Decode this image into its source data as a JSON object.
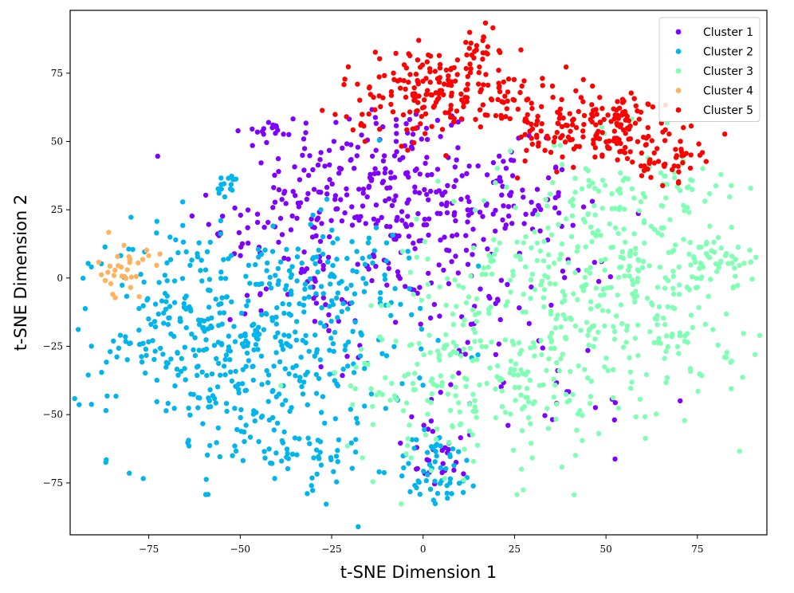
{
  "chart_data": {
    "type": "scatter",
    "title": "",
    "xlabel": "t-SNE Dimension 1",
    "ylabel": "t-SNE Dimension 2",
    "xlim": [
      -96.5,
      94
    ],
    "ylim": [
      -94,
      98
    ],
    "xticks": [
      -75,
      -50,
      -25,
      0,
      25,
      50,
      75
    ],
    "yticks": [
      -75,
      -50,
      -25,
      0,
      25,
      50,
      75
    ],
    "grid": false,
    "legend_position": "upper right",
    "series": [
      {
        "name": "Cluster 1",
        "color": "#8000ff",
        "marker": "circle",
        "regions": [
          {
            "cx": -12,
            "cy": 38,
            "sx": 15,
            "sy": 14,
            "n": 170
          },
          {
            "cx": 20,
            "cy": 28,
            "sx": 10,
            "sy": 10,
            "n": 90
          },
          {
            "cx": -38,
            "cy": 22,
            "sx": 10,
            "sy": 18,
            "n": 70
          },
          {
            "cx": -3,
            "cy": 8,
            "sx": 14,
            "sy": 12,
            "n": 70
          },
          {
            "cx": 20,
            "cy": -20,
            "sx": 18,
            "sy": 22,
            "n": 60
          },
          {
            "cx": 5,
            "cy": -65,
            "sx": 7,
            "sy": 6,
            "n": 22
          },
          {
            "cx": -42,
            "cy": 53,
            "sx": 3,
            "sy": 2,
            "n": 12
          },
          {
            "cx": 45,
            "cy": -45,
            "sx": 8,
            "sy": 8,
            "n": 10
          },
          {
            "cx": -28,
            "cy": -5,
            "sx": 12,
            "sy": 10,
            "n": 30
          }
        ]
      },
      {
        "name": "Cluster 2",
        "color": "#00b5eb",
        "marker": "circle",
        "regions": [
          {
            "cx": -45,
            "cy": -25,
            "sx": 20,
            "sy": 22,
            "n": 420
          },
          {
            "cx": -68,
            "cy": -15,
            "sx": 10,
            "sy": 18,
            "n": 90
          },
          {
            "cx": 4,
            "cy": -70,
            "sx": 6,
            "sy": 7,
            "n": 60
          },
          {
            "cx": -53,
            "cy": 34,
            "sx": 2,
            "sy": 2,
            "n": 14
          },
          {
            "cx": -20,
            "cy": 5,
            "sx": 10,
            "sy": 8,
            "n": 50
          },
          {
            "cx": -35,
            "cy": -65,
            "sx": 12,
            "sy": 6,
            "n": 40
          }
        ]
      },
      {
        "name": "Cluster 3",
        "color": "#80ffb4",
        "marker": "circle",
        "regions": [
          {
            "cx": 45,
            "cy": 0,
            "sx": 20,
            "sy": 22,
            "n": 300
          },
          {
            "cx": 15,
            "cy": -35,
            "sx": 18,
            "sy": 18,
            "n": 230
          },
          {
            "cx": 70,
            "cy": -10,
            "sx": 10,
            "sy": 18,
            "n": 80
          },
          {
            "cx": 80,
            "cy": 7,
            "sx": 6,
            "sy": 4,
            "n": 30
          },
          {
            "cx": 60,
            "cy": 30,
            "sx": 12,
            "sy": 10,
            "n": 60
          }
        ]
      },
      {
        "name": "Cluster 4",
        "color": "#ffb360",
        "marker": "circle",
        "regions": [
          {
            "cx": -82,
            "cy": 3,
            "sx": 3.5,
            "sy": 5,
            "n": 34
          }
        ]
      },
      {
        "name": "Cluster 5",
        "color": "#ff0000",
        "marker": "circle",
        "regions": [
          {
            "cx": 5,
            "cy": 68,
            "sx": 14,
            "sy": 8,
            "n": 200
          },
          {
            "cx": 52,
            "cy": 55,
            "sx": 9,
            "sy": 7,
            "n": 150
          },
          {
            "cx": 68,
            "cy": 44,
            "sx": 4,
            "sy": 4,
            "n": 35
          },
          {
            "cx": 15,
            "cy": 85,
            "sx": 3,
            "sy": 3,
            "n": 20
          },
          {
            "cx": 30,
            "cy": 55,
            "sx": 6,
            "sy": 10,
            "n": 40
          }
        ]
      }
    ]
  }
}
